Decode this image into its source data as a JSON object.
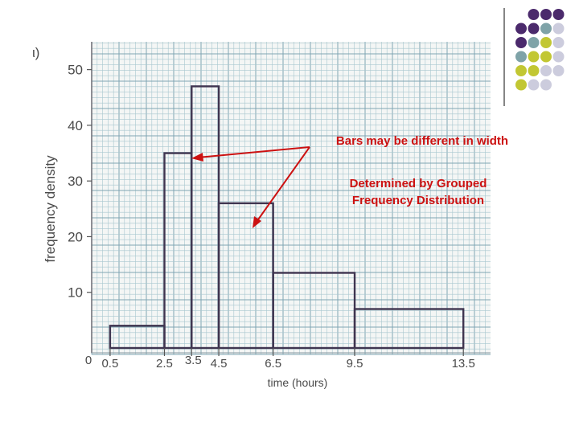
{
  "colors": {
    "paper": "#f4f6f5",
    "grid_minor": "#a9c7cf",
    "grid_major": "#7fa5b3",
    "bar_stroke": "#3f3550",
    "axis_text": "#4a4a4a",
    "note": "#cc1111",
    "dot_purple": "#4b2a6c",
    "dot_teal": "#7fa3a8",
    "dot_olive": "#c2c733",
    "dot_lavender": "#ccccdd"
  },
  "corner_label": "ι)",
  "notes": {
    "width_note": "Bars may be different in width",
    "grouped_line1": "Determined by Grouped",
    "grouped_line2": "Frequency Distribution"
  },
  "chart_data": {
    "type": "bar",
    "title": "",
    "xlabel": "time (hours)",
    "ylabel": "frequency density",
    "xlim": [
      0,
      14.5
    ],
    "ylim": [
      0,
      55
    ],
    "y_ticks": [
      10,
      20,
      30,
      40,
      50
    ],
    "x_tick_labels": [
      "0",
      "0.5",
      "2.5",
      "3.5",
      "4.5",
      "6.5",
      "9.5",
      "13.5"
    ],
    "grid": true,
    "bins": [
      {
        "start": 0.5,
        "end": 2.5,
        "value": 4
      },
      {
        "start": 2.5,
        "end": 3.5,
        "value": 35
      },
      {
        "start": 3.5,
        "end": 4.5,
        "value": 47
      },
      {
        "start": 4.5,
        "end": 6.5,
        "value": 26
      },
      {
        "start": 6.5,
        "end": 9.5,
        "value": 13.5
      },
      {
        "start": 9.5,
        "end": 13.5,
        "value": 7
      }
    ]
  }
}
